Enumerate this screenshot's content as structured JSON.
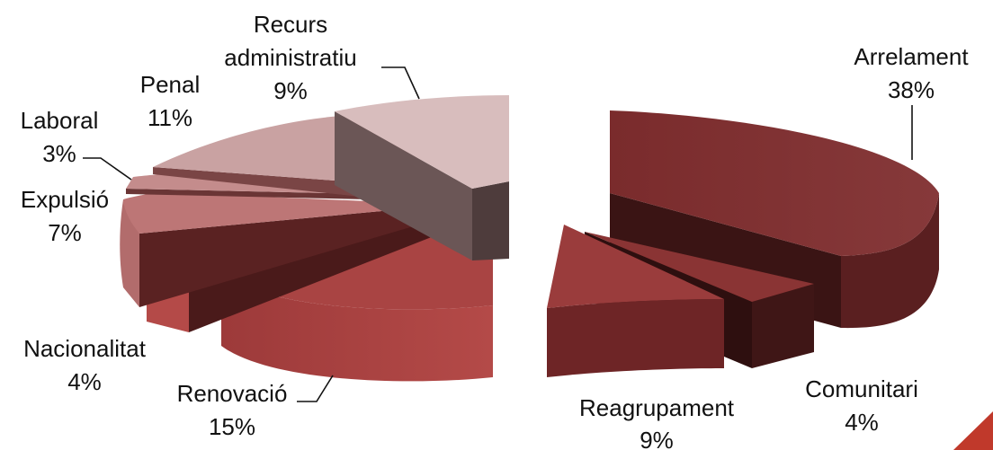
{
  "chart_data": {
    "type": "pie",
    "style": "exploded-3d",
    "categories": [
      "Arrelament",
      "Comunitari",
      "Reagrupament",
      "Renovació",
      "Nacionalitat",
      "Expulsió",
      "Laboral",
      "Penal",
      "Recurs administratiu"
    ],
    "values": [
      38,
      4,
      9,
      15,
      4,
      7,
      3,
      11,
      9
    ],
    "unit": "%",
    "legend": "none",
    "slices": [
      {
        "label": "Arrelament",
        "value": 38,
        "pct_label": "38%",
        "color": "#7f2f30"
      },
      {
        "label": "Comunitari",
        "value": 4,
        "pct_label": "4%",
        "color": "#8a3434"
      },
      {
        "label": "Reagrupament",
        "value": 9,
        "pct_label": "9%",
        "color": "#9a3c3c"
      },
      {
        "label": "Renovació",
        "value": 15,
        "pct_label": "15%",
        "color": "#a94443"
      },
      {
        "label": "Nacionalitat",
        "value": 4,
        "pct_label": "4%",
        "color": "#b6504c"
      },
      {
        "label": "Expulsió",
        "value": 7,
        "pct_label": "7%",
        "color": "#bd7676"
      },
      {
        "label": "Laboral",
        "value": 3,
        "pct_label": "3%",
        "color": "#c48c8c"
      },
      {
        "label": "Penal",
        "value": 11,
        "pct_label": "11%",
        "color": "#c9a2a2"
      },
      {
        "label": "Recurs administratiu",
        "value": 9,
        "pct_label": "9%",
        "color": "#d8bdbd"
      }
    ]
  },
  "labels": {
    "recurs_1": "Recurs",
    "recurs_2": "administratiu",
    "recurs_pct": "9%",
    "arrelament": "Arrelament",
    "arrelament_pct": "38%",
    "penal": "Penal",
    "penal_pct": "11%",
    "laboral": "Laboral",
    "laboral_pct": "3%",
    "expulsio": "Expulsió",
    "expulsio_pct": "7%",
    "nacionalitat": "Nacionalitat",
    "nacionalitat_pct": "4%",
    "renovacio": "Renovació",
    "renovacio_pct": "15%",
    "reagrupament": "Reagrupament",
    "reagrupament_pct": "9%",
    "comunitari": "Comunitari",
    "comunitari_pct": "4%"
  },
  "colors": {
    "shadow_dark": "#3a1414",
    "accent_corner": "#c0392b"
  }
}
